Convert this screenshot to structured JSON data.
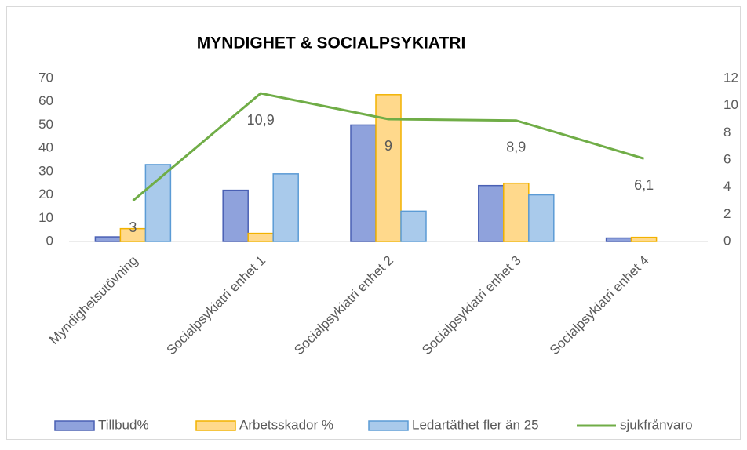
{
  "chart_data": {
    "type": "bar",
    "title": "MYNDIGHET & SOCIALPSYKIATRI",
    "categories": [
      "Myndighetsutövning",
      "Socialpsykiatri enhet 1",
      "Socialpsykiatri enhet 2",
      "Socialpsykiatri enhet 3",
      "Socialpsykiatri enhet 4"
    ],
    "series": [
      {
        "name": "Tillbud%",
        "type": "bar",
        "color": "#8fa2dc",
        "values": [
          2,
          22,
          50,
          24,
          1.5
        ]
      },
      {
        "name": "Arbetsskador %",
        "type": "bar",
        "color": "#ffd98c",
        "values": [
          5.5,
          3.5,
          63,
          25,
          1.8
        ]
      },
      {
        "name": "Ledartäthet fler än 25",
        "type": "bar",
        "color": "#a9caeb",
        "values": [
          33,
          29,
          13,
          20,
          null
        ]
      },
      {
        "name": "sjukfrånvaro",
        "type": "line",
        "axis": "y2",
        "color": "#70ad47",
        "values": [
          3,
          10.9,
          9,
          8.9,
          6.1
        ],
        "value_labels": [
          "3",
          "10,9",
          "9",
          "8,9",
          "6,1"
        ]
      }
    ],
    "ylim": [
      0,
      70
    ],
    "yticks": [
      0,
      10,
      20,
      30,
      40,
      50,
      60,
      70
    ],
    "y2lim": [
      0,
      12
    ],
    "y2ticks": [
      0,
      2,
      4,
      6,
      8,
      10,
      12
    ],
    "grid": false,
    "legend": "bottom"
  }
}
